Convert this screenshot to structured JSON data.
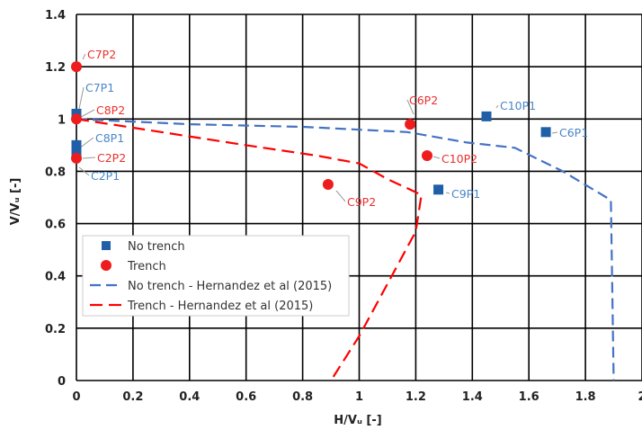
{
  "chart_data": {
    "type": "scatter",
    "xlabel": "H/Vᵤ [-]",
    "ylabel": "V/Vᵤ [-]",
    "xlim": [
      0,
      2
    ],
    "ylim": [
      0,
      1.4
    ],
    "x_ticks": [
      "0",
      "0.2",
      "0.4",
      "0.6",
      "0.8",
      "1",
      "1.2",
      "1.4",
      "1.6",
      "1.8",
      "2"
    ],
    "y_ticks": [
      "0",
      "0.2",
      "0.4",
      "0.6",
      "0.8",
      "1",
      "1.2",
      "1.4"
    ],
    "grid": true,
    "legend_position": "bottom-left",
    "colors": {
      "no_trench": "#1f5fa8",
      "trench": "#ee1c1c",
      "no_trench_line": "#4472c4",
      "trench_line": "#ff0000",
      "label_blue": "#4a86c8",
      "label_red": "#e8312f"
    },
    "series": [
      {
        "name": "No trench",
        "marker": "square",
        "points": [
          {
            "label": "C7P1",
            "x": 0.0,
            "y": 1.02
          },
          {
            "label": "C8P1",
            "x": 0.0,
            "y": 0.9
          },
          {
            "label": "C2P1",
            "x": 0.0,
            "y": 0.87
          },
          {
            "label": "C10P1",
            "x": 1.45,
            "y": 1.01
          },
          {
            "label": "C6P1",
            "x": 1.66,
            "y": 0.95
          },
          {
            "label": "C9P1",
            "x": 1.28,
            "y": 0.73
          }
        ]
      },
      {
        "name": "Trench",
        "marker": "circle",
        "points": [
          {
            "label": "C7P2",
            "x": 0.0,
            "y": 1.2
          },
          {
            "label": "C8P2",
            "x": 0.0,
            "y": 1.0
          },
          {
            "label": "C2P2",
            "x": 0.0,
            "y": 0.85
          },
          {
            "label": "C6P2",
            "x": 1.18,
            "y": 0.98
          },
          {
            "label": "C10P2",
            "x": 1.24,
            "y": 0.86
          },
          {
            "label": "C9P2",
            "x": 0.89,
            "y": 0.75
          }
        ]
      },
      {
        "name": "No trench - Hernandez et al (2015)",
        "style": "dashed-line",
        "points": [
          {
            "x": 0.0,
            "y": 1.0
          },
          {
            "x": 0.4,
            "y": 0.98
          },
          {
            "x": 0.8,
            "y": 0.97
          },
          {
            "x": 1.17,
            "y": 0.95
          },
          {
            "x": 1.38,
            "y": 0.91
          },
          {
            "x": 1.55,
            "y": 0.89
          },
          {
            "x": 1.72,
            "y": 0.8
          },
          {
            "x": 1.89,
            "y": 0.69
          },
          {
            "x": 1.9,
            "y": 0.0
          }
        ]
      },
      {
        "name": "Trench - Hernandez et al (2015)",
        "style": "dashed-line",
        "points": [
          {
            "x": 0.0,
            "y": 1.0
          },
          {
            "x": 0.3,
            "y": 0.95
          },
          {
            "x": 0.6,
            "y": 0.9
          },
          {
            "x": 0.85,
            "y": 0.86
          },
          {
            "x": 1.0,
            "y": 0.83
          },
          {
            "x": 1.1,
            "y": 0.77
          },
          {
            "x": 1.22,
            "y": 0.71
          },
          {
            "x": 1.2,
            "y": 0.57
          },
          {
            "x": 1.1,
            "y": 0.37
          },
          {
            "x": 1.0,
            "y": 0.17
          },
          {
            "x": 0.9,
            "y": 0.0
          }
        ]
      }
    ]
  }
}
